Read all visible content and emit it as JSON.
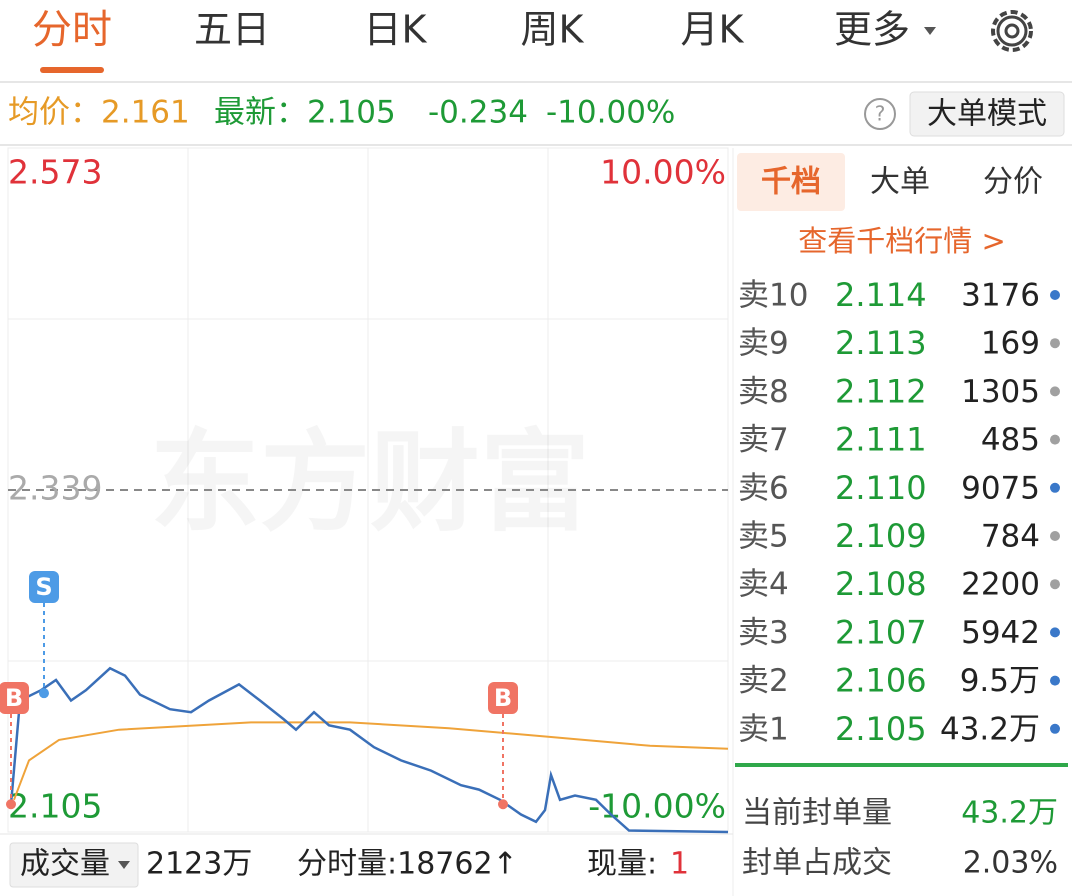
{
  "tabs": [
    "分时",
    "五日",
    "日K",
    "周K",
    "月K",
    "更多"
  ],
  "info": {
    "avg": "均价：2.161",
    "latest": "最新：2.105",
    "change": "-0.234",
    "change_pct": "-10.00%",
    "help": "?",
    "mode_button": "大单模式"
  },
  "watermark": "东方财富",
  "chart_data": {
    "type": "line",
    "xlim": [
      0,
      240
    ],
    "ylim": [
      2.105,
      2.573
    ],
    "yticks": [
      2.105,
      2.339,
      2.573
    ],
    "y2lim": [
      -10,
      10
    ],
    "y2ticks": [
      {
        "value": -10,
        "label": "-10.00%"
      },
      {
        "value": 10,
        "label": "10.00%"
      }
    ],
    "series": [
      {
        "color": "#3a6fb8",
        "x": [
          1,
          4,
          11,
          16,
          21,
          26,
          34,
          39,
          44,
          54,
          61,
          67,
          77,
          84,
          92,
          96,
          102,
          107,
          114,
          122,
          131,
          141,
          151,
          157,
          164,
          171,
          176,
          179,
          181,
          184,
          189,
          196,
          201,
          207,
          240
        ],
        "values": [
          2.124,
          2.195,
          2.202,
          2.209,
          2.195,
          2.202,
          2.217,
          2.212,
          2.199,
          2.189,
          2.187,
          2.195,
          2.206,
          2.195,
          2.182,
          2.175,
          2.187,
          2.178,
          2.175,
          2.163,
          2.154,
          2.147,
          2.137,
          2.134,
          2.127,
          2.117,
          2.112,
          2.12,
          2.144,
          2.127,
          2.13,
          2.127,
          2.117,
          2.106,
          2.105
        ]
      },
      {
        "color": "#efa33a",
        "x": [
          2,
          7,
          17,
          37,
          81,
          114,
          147,
          181,
          214,
          240
        ],
        "values": [
          2.127,
          2.154,
          2.168,
          2.175,
          2.18,
          2.18,
          2.176,
          2.17,
          2.164,
          2.162
        ]
      }
    ],
    "markers": [
      {
        "label": "B",
        "x": 1,
        "y": 2.124,
        "color": "#f07464"
      },
      {
        "label": "S",
        "x": 12,
        "y": 2.2,
        "color": "#4d9be6"
      },
      {
        "label": "B",
        "x": 165,
        "y": 2.124,
        "color": "#f07464"
      }
    ]
  },
  "order_book": {
    "tabs": [
      "千档",
      "大单",
      "分价"
    ],
    "link": "查看千档行情 >",
    "rows": [
      {
        "label": "卖10",
        "price": "2.114",
        "volume": "3176",
        "dot": "#3a78c9"
      },
      {
        "label": "卖9",
        "price": "2.113",
        "volume": "169",
        "dot": "#a0a0a0"
      },
      {
        "label": "卖8",
        "price": "2.112",
        "volume": "1305",
        "dot": "#a0a0a0"
      },
      {
        "label": "卖7",
        "price": "2.111",
        "volume": "485",
        "dot": "#a0a0a0"
      },
      {
        "label": "卖6",
        "price": "2.110",
        "volume": "9075",
        "dot": "#3a78c9"
      },
      {
        "label": "卖5",
        "price": "2.109",
        "volume": "784",
        "dot": "#a0a0a0"
      },
      {
        "label": "卖4",
        "price": "2.108",
        "volume": "2200",
        "dot": "#a0a0a0"
      },
      {
        "label": "卖3",
        "price": "2.107",
        "volume": "5942",
        "dot": "#3a78c9"
      },
      {
        "label": "卖2",
        "price": "2.106",
        "volume": "9.5万",
        "dot": "#3a78c9"
      },
      {
        "label": "卖1",
        "price": "2.105",
        "volume": "43.2万",
        "dot": "#3a78c9"
      }
    ],
    "seal_label": "当前封单量",
    "seal_value": "43.2万",
    "ratio_label": "封单占成交",
    "ratio_value": "2.03%"
  },
  "footer": {
    "selector": "成交量",
    "volume": "2123万",
    "minute_volume": "分时量:18762↑",
    "current_label": "现量:",
    "current_value": "1"
  }
}
